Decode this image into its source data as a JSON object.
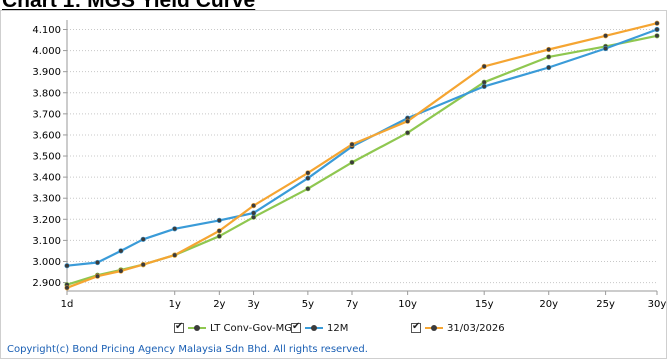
{
  "page_title": "Chart 1: MGS Yield Curve",
  "copyright": "Copyright(c) Bond Pricing Agency Malaysia Sdn Bhd. All rights reserved.",
  "chart_data": {
    "type": "line",
    "title": "Chart 1: MGS Yield Curve",
    "xlabel": "",
    "ylabel": "",
    "x_tick_labels": [
      "1d",
      "1y",
      "2y",
      "3y",
      "5y",
      "7y",
      "10y",
      "15y",
      "20y",
      "25y",
      "30y"
    ],
    "x_tick_values": [
      0,
      1,
      2,
      3,
      5,
      7,
      10,
      15,
      20,
      25,
      30
    ],
    "y_ticks": [
      "2.900",
      "3.000",
      "3.100",
      "3.200",
      "3.300",
      "3.400",
      "3.500",
      "3.600",
      "3.700",
      "3.800",
      "3.900",
      "4.000",
      "4.100"
    ],
    "ylim": [
      2.86,
      4.145
    ],
    "x_scale": "sqrt",
    "grid": true,
    "legend_position": "bottom",
    "series": [
      {
        "name": "LT Conv-Gov-MGS",
        "color": "#8fc750",
        "x": [
          0,
          0.08,
          0.25,
          0.5,
          1,
          2,
          3,
          5,
          7,
          10,
          15,
          20,
          25,
          30
        ],
        "y": [
          2.89,
          2.935,
          2.96,
          2.985,
          3.03,
          3.12,
          3.21,
          3.345,
          3.47,
          3.61,
          3.85,
          3.97,
          4.02,
          4.07
        ]
      },
      {
        "name": "12M",
        "color": "#3a9bd8",
        "x": [
          0,
          0.08,
          0.25,
          0.5,
          1,
          2,
          3,
          5,
          7,
          10,
          15,
          20,
          25,
          30
        ],
        "y": [
          2.98,
          2.995,
          3.05,
          3.105,
          3.155,
          3.195,
          3.23,
          3.395,
          3.545,
          3.68,
          3.83,
          3.92,
          4.01,
          4.1
        ]
      },
      {
        "name": "31/03/2026",
        "color": "#f5a532",
        "x": [
          0,
          0.08,
          0.25,
          0.5,
          1,
          2,
          3,
          5,
          7,
          10,
          15,
          20,
          25,
          30
        ],
        "y": [
          2.875,
          2.93,
          2.955,
          2.985,
          3.03,
          3.145,
          3.265,
          3.42,
          3.555,
          3.665,
          3.925,
          4.005,
          4.07,
          4.13
        ]
      }
    ]
  }
}
